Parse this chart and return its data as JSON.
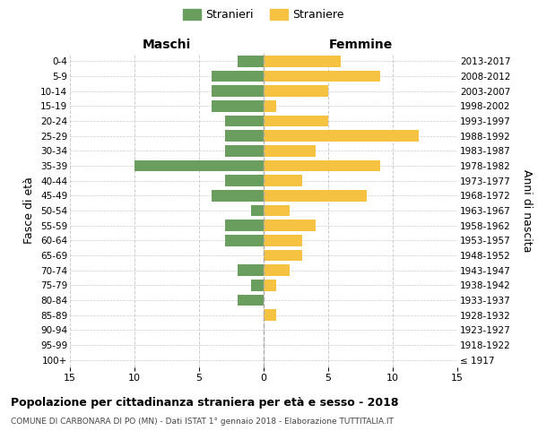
{
  "age_groups": [
    "100+",
    "95-99",
    "90-94",
    "85-89",
    "80-84",
    "75-79",
    "70-74",
    "65-69",
    "60-64",
    "55-59",
    "50-54",
    "45-49",
    "40-44",
    "35-39",
    "30-34",
    "25-29",
    "20-24",
    "15-19",
    "10-14",
    "5-9",
    "0-4"
  ],
  "birth_years": [
    "≤ 1917",
    "1918-1922",
    "1923-1927",
    "1928-1932",
    "1933-1937",
    "1938-1942",
    "1943-1947",
    "1948-1952",
    "1953-1957",
    "1958-1962",
    "1963-1967",
    "1968-1972",
    "1973-1977",
    "1978-1982",
    "1983-1987",
    "1988-1992",
    "1993-1997",
    "1998-2002",
    "2003-2007",
    "2008-2012",
    "2013-2017"
  ],
  "maschi": [
    0,
    0,
    0,
    0,
    2,
    1,
    2,
    0,
    3,
    3,
    1,
    4,
    3,
    10,
    3,
    3,
    3,
    4,
    4,
    4,
    2
  ],
  "femmine": [
    0,
    0,
    0,
    1,
    0,
    1,
    2,
    3,
    3,
    4,
    2,
    8,
    3,
    9,
    4,
    12,
    5,
    1,
    5,
    9,
    6
  ],
  "color_maschi": "#6a9e5e",
  "color_femmine": "#f5c242",
  "legend_maschi": "Stranieri",
  "legend_femmine": "Straniere",
  "title": "Popolazione per cittadinanza straniera per età e sesso - 2018",
  "subtitle": "COMUNE DI CARBONARA DI PO (MN) - Dati ISTAT 1° gennaio 2018 - Elaborazione TUTTITALIA.IT",
  "xlabel_left": "Maschi",
  "xlabel_right": "Femmine",
  "ylabel_left": "Fasce di età",
  "ylabel_right": "Anni di nascita",
  "xlim": 15,
  "background_color": "#ffffff",
  "grid_color": "#cccccc"
}
